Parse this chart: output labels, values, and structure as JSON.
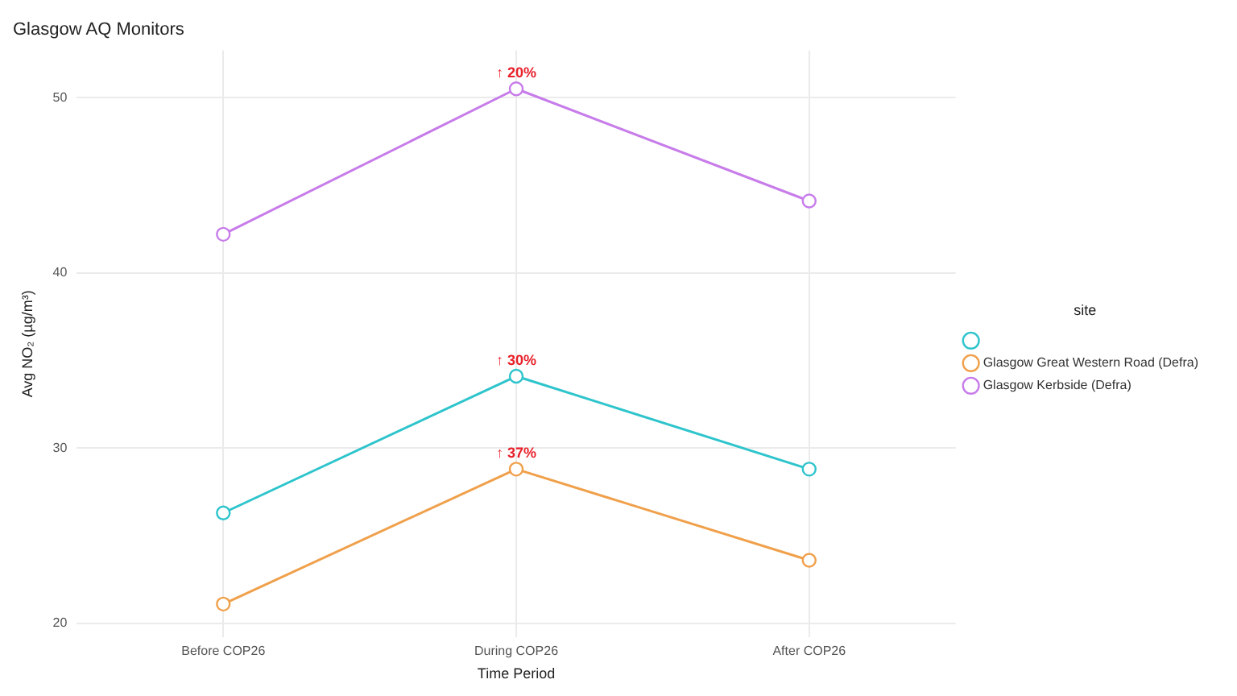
{
  "chart_data": {
    "type": "line",
    "title": "Glasgow AQ Monitors",
    "xlabel": "Time Period",
    "ylabel": "Avg NO₂ (µg/m³)",
    "legend_title": "site",
    "categories": [
      "Before COP26",
      "During COP26",
      "After COP26"
    ],
    "series": [
      {
        "color": "#2ec4cc",
        "values": [
          26.3,
          34.1,
          28.8
        ]
      },
      {
        "name": "Glasgow Great Western Road (Defra)",
        "color": "#f0a04b",
        "values": [
          21.1,
          28.8,
          23.6
        ]
      },
      {
        "name": "Glasgow Kerbside (Defra)",
        "color": "#c77cea",
        "values": [
          42.2,
          50.5,
          44.1
        ]
      }
    ],
    "ylim": [
      19.2,
      52.7
    ],
    "yticks": [
      20,
      30,
      40,
      50
    ],
    "grid": true,
    "legend": "right",
    "marker": "circle",
    "line_style": "solid",
    "annotations": [
      {
        "text": "↑ 20%",
        "x": "During COP26",
        "y": 50.5
      },
      {
        "text": "↑ 30%",
        "x": "During COP26",
        "y": 34.1
      },
      {
        "text": "↑ 37%",
        "x": "During COP26",
        "y": 28.8
      }
    ]
  }
}
